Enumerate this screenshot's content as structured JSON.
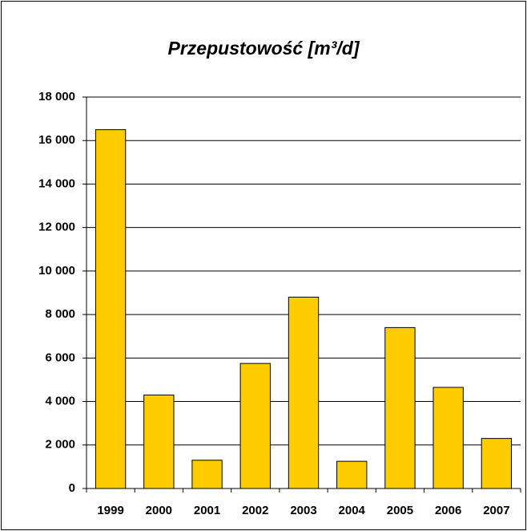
{
  "chart_data": {
    "type": "bar",
    "title": "Przepustowość [m³/d]",
    "categories": [
      "1999",
      "2000",
      "2001",
      "2002",
      "2003",
      "2004",
      "2005",
      "2006",
      "2007"
    ],
    "values": [
      16500,
      4300,
      1300,
      5750,
      8800,
      1250,
      7400,
      4650,
      2300
    ],
    "color": "#ffcc00",
    "ylim": [
      0,
      18000
    ],
    "yticks": [
      0,
      {
        "value": 2000,
        "label": "2 000"
      },
      {
        "value": 4000,
        "label": "4 000"
      },
      {
        "value": 6000,
        "label": "6 000"
      },
      {
        "value": 8000,
        "label": "8 000"
      },
      {
        "value": 10000,
        "label": "10 000"
      },
      {
        "value": 12000,
        "label": "12 000"
      },
      {
        "value": 14000,
        "label": "14 000"
      },
      {
        "value": 16000,
        "label": "16 000"
      },
      {
        "value": 18000,
        "label": "18 000"
      }
    ],
    "grid": true
  }
}
